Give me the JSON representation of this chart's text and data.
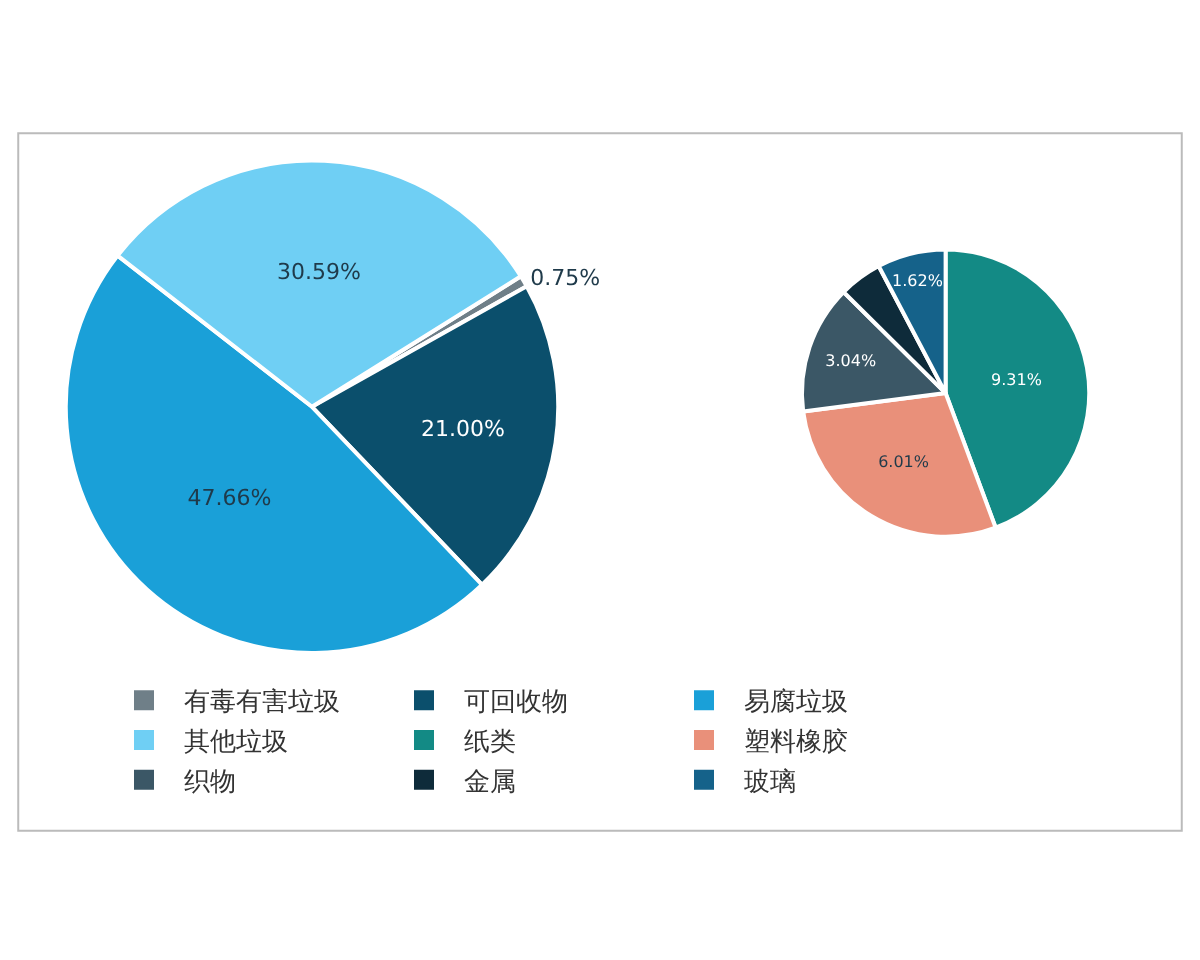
{
  "chart_data": [
    {
      "type": "pie",
      "categories": [
        "有毒有害垃圾",
        "可回收物",
        "易腐垃圾",
        "其他垃圾"
      ],
      "values": [
        0.75,
        21.0,
        47.66,
        30.59
      ],
      "colors": [
        "#6f7f88",
        "#0b4f6c",
        "#1aa0d8",
        "#6fcff4"
      ],
      "value_labels": [
        "0.75%",
        "21.00%",
        "47.66%",
        "30.59%"
      ],
      "legend": "bottom"
    },
    {
      "type": "pie",
      "categories": [
        "纸类",
        "塑料橡胶",
        "织物",
        "金属",
        "玻璃"
      ],
      "values": [
        9.31,
        6.01,
        3.04,
        1.02,
        1.62
      ],
      "colors": [
        "#138a85",
        "#e9907a",
        "#3b5766",
        "#0e2b3a",
        "#15628a"
      ],
      "value_labels": [
        "9.31%",
        "6.01%",
        "3.04%",
        null,
        "1.62%"
      ],
      "legend": "bottom"
    }
  ]
}
